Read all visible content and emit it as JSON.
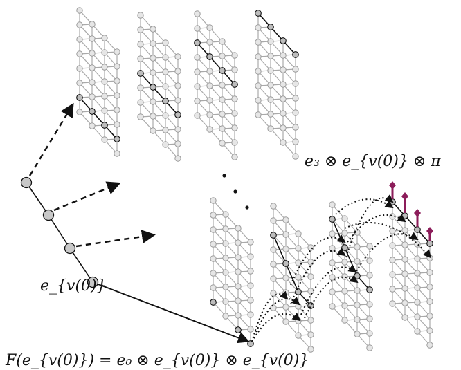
{
  "labels": {
    "top_right_formula": "e₃ ⊗ e_{v(0)} ⊗ π",
    "e_v0": "e_{v(0)}",
    "bottom_formula": "F(e_{v(0)}) = e₀ ⊗ e_{v(0)} ⊗ e_{v(0)}"
  },
  "colors": {
    "marker": "#8c1d5a",
    "lattice_edge": "#a9a9a9",
    "lattice_node": "#e6e6e6",
    "highlight_node": "#bdbdbd",
    "path": "#111111"
  },
  "diagram": {
    "top_lattices": 4,
    "bottom_lattices": 4,
    "path_nodes": 4,
    "purple_markers": 4,
    "continuation_dots": 3
  }
}
